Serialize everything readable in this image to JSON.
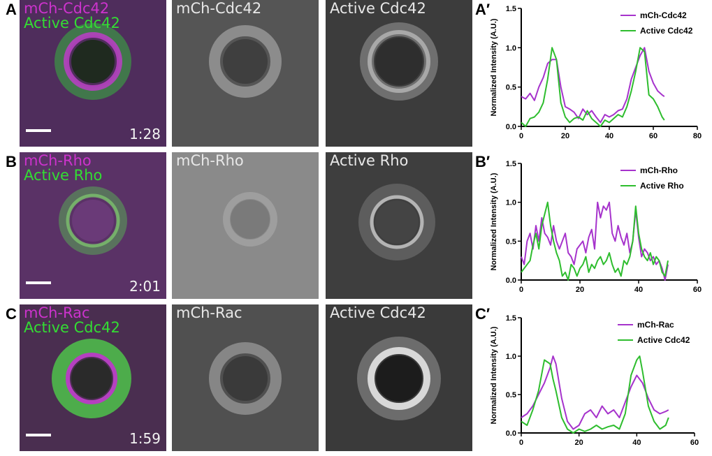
{
  "rows": [
    {
      "letter": "A",
      "merge_label_1": "mCh-Cdc42",
      "merge_label_2": "Active Cdc42",
      "time": "1:28",
      "single_label_1": "mCh-Cdc42",
      "single_label_2": "Active Cdc42",
      "chart_letter": "A′"
    },
    {
      "letter": "B",
      "merge_label_1": "mCh-Rho",
      "merge_label_2": "Active Rho",
      "time": "2:01",
      "single_label_1": "mCh-Rho",
      "single_label_2": "Active Rho",
      "chart_letter": "B′"
    },
    {
      "letter": "C",
      "merge_label_1": "mCh-Rac",
      "merge_label_2": "Active Cdc42",
      "time": "1:59",
      "single_label_1": "mCh-Rac",
      "single_label_2": "Active Cdc42",
      "chart_letter": "C′"
    }
  ],
  "colors": {
    "magenta": "#a633cc",
    "green": "#2ebd2e",
    "merge_bg": "#4a2a55"
  },
  "chart_data": [
    {
      "type": "line",
      "panel": "A′",
      "ylabel": "Normalized Intensity (A.U.)",
      "xlabel": "",
      "xlim": [
        0,
        80
      ],
      "ylim": [
        0,
        1.5
      ],
      "xticks": [
        0,
        20,
        40,
        60,
        80
      ],
      "yticks": [
        0.0,
        0.5,
        1.0,
        1.5
      ],
      "legend_position": "top-right",
      "series": [
        {
          "name": "mCh-Cdc42",
          "color": "#a633cc",
          "x": [
            0,
            2,
            4,
            6,
            8,
            10,
            12,
            14,
            16,
            18,
            20,
            22,
            24,
            26,
            28,
            30,
            32,
            34,
            36,
            38,
            40,
            42,
            44,
            46,
            48,
            50,
            52,
            54,
            56,
            58,
            60,
            62,
            64,
            65
          ],
          "y": [
            0.38,
            0.35,
            0.42,
            0.33,
            0.5,
            0.62,
            0.8,
            0.85,
            0.85,
            0.5,
            0.25,
            0.22,
            0.18,
            0.1,
            0.22,
            0.15,
            0.2,
            0.12,
            0.05,
            0.15,
            0.12,
            0.15,
            0.2,
            0.22,
            0.35,
            0.6,
            0.75,
            0.9,
            1.0,
            0.7,
            0.55,
            0.45,
            0.4,
            0.38
          ]
        },
        {
          "name": "Active Cdc42",
          "color": "#2ebd2e",
          "x": [
            0,
            2,
            4,
            6,
            8,
            10,
            12,
            14,
            16,
            18,
            20,
            22,
            24,
            26,
            28,
            30,
            32,
            34,
            36,
            38,
            40,
            42,
            44,
            46,
            48,
            50,
            52,
            54,
            56,
            58,
            60,
            62,
            64,
            65
          ],
          "y": [
            0.05,
            0.0,
            0.1,
            0.12,
            0.18,
            0.3,
            0.6,
            1.0,
            0.85,
            0.3,
            0.12,
            0.05,
            0.1,
            0.12,
            0.08,
            0.2,
            0.1,
            0.05,
            0.0,
            0.08,
            0.05,
            0.1,
            0.15,
            0.12,
            0.25,
            0.45,
            0.7,
            1.0,
            0.95,
            0.4,
            0.35,
            0.25,
            0.12,
            0.08
          ]
        }
      ]
    },
    {
      "type": "line",
      "panel": "B′",
      "ylabel": "Normalized Intensity (A.U.)",
      "xlabel": "",
      "xlim": [
        0,
        60
      ],
      "ylim": [
        0,
        1.5
      ],
      "xticks": [
        0,
        20,
        40,
        60
      ],
      "yticks": [
        0.0,
        0.5,
        1.0,
        1.5
      ],
      "legend_position": "top-right",
      "series": [
        {
          "name": "mCh-Rho",
          "color": "#a633cc",
          "x": [
            0,
            1,
            2,
            3,
            4,
            5,
            6,
            7,
            8,
            9,
            10,
            11,
            12,
            13,
            14,
            15,
            16,
            17,
            18,
            19,
            20,
            21,
            22,
            23,
            24,
            25,
            26,
            27,
            28,
            29,
            30,
            31,
            32,
            33,
            34,
            35,
            36,
            37,
            38,
            39,
            40,
            41,
            42,
            43,
            44,
            45,
            46,
            47,
            48,
            49,
            50
          ],
          "y": [
            0.3,
            0.2,
            0.5,
            0.6,
            0.4,
            0.7,
            0.5,
            0.8,
            0.6,
            0.55,
            0.45,
            0.7,
            0.5,
            0.4,
            0.5,
            0.6,
            0.35,
            0.3,
            0.2,
            0.4,
            0.45,
            0.5,
            0.35,
            0.55,
            0.65,
            0.4,
            1.0,
            0.8,
            0.95,
            0.9,
            1.0,
            0.6,
            0.5,
            0.7,
            0.55,
            0.45,
            0.6,
            0.35,
            0.5,
            0.9,
            0.55,
            0.3,
            0.4,
            0.35,
            0.25,
            0.3,
            0.2,
            0.25,
            0.15,
            0.0,
            0.2
          ]
        },
        {
          "name": "Active Rho",
          "color": "#2ebd2e",
          "x": [
            0,
            1,
            2,
            3,
            4,
            5,
            6,
            7,
            8,
            9,
            10,
            11,
            12,
            13,
            14,
            15,
            16,
            17,
            18,
            19,
            20,
            21,
            22,
            23,
            24,
            25,
            26,
            27,
            28,
            29,
            30,
            31,
            32,
            33,
            34,
            35,
            36,
            37,
            38,
            39,
            40,
            41,
            42,
            43,
            44,
            45,
            46,
            47,
            48,
            49,
            50
          ],
          "y": [
            0.1,
            0.15,
            0.2,
            0.25,
            0.45,
            0.6,
            0.4,
            0.7,
            0.85,
            1.0,
            0.7,
            0.5,
            0.35,
            0.25,
            0.05,
            0.1,
            0.0,
            0.2,
            0.15,
            0.05,
            0.15,
            0.2,
            0.3,
            0.1,
            0.2,
            0.15,
            0.25,
            0.3,
            0.2,
            0.25,
            0.35,
            0.2,
            0.1,
            0.15,
            0.05,
            0.25,
            0.2,
            0.3,
            0.5,
            0.95,
            0.6,
            0.4,
            0.3,
            0.25,
            0.35,
            0.2,
            0.3,
            0.25,
            0.1,
            0.05,
            0.25
          ]
        }
      ]
    },
    {
      "type": "line",
      "panel": "C′",
      "ylabel": "Normalized Intensity (A.U.)",
      "xlabel": "",
      "xlim": [
        0,
        60
      ],
      "ylim": [
        0,
        1.5
      ],
      "xticks": [
        0,
        20,
        40,
        60
      ],
      "yticks": [
        0.0,
        0.5,
        1.0,
        1.5
      ],
      "legend_position": "top-right",
      "series": [
        {
          "name": "mCh-Rac",
          "color": "#a633cc",
          "x": [
            0,
            2,
            4,
            6,
            8,
            10,
            11,
            12,
            14,
            16,
            18,
            20,
            22,
            24,
            26,
            28,
            30,
            32,
            34,
            36,
            38,
            40,
            42,
            44,
            46,
            48,
            50,
            51
          ],
          "y": [
            0.2,
            0.25,
            0.35,
            0.5,
            0.65,
            0.85,
            1.0,
            0.9,
            0.45,
            0.15,
            0.05,
            0.1,
            0.25,
            0.3,
            0.2,
            0.35,
            0.25,
            0.3,
            0.2,
            0.4,
            0.6,
            0.75,
            0.65,
            0.45,
            0.3,
            0.25,
            0.28,
            0.3
          ]
        },
        {
          "name": "Active Cdc42",
          "color": "#2ebd2e",
          "x": [
            0,
            2,
            4,
            6,
            8,
            10,
            11,
            12,
            14,
            16,
            18,
            20,
            22,
            24,
            26,
            28,
            30,
            32,
            34,
            36,
            38,
            40,
            41,
            42,
            44,
            46,
            48,
            50,
            51
          ],
          "y": [
            0.15,
            0.1,
            0.3,
            0.55,
            0.95,
            0.9,
            0.7,
            0.55,
            0.2,
            0.05,
            0.0,
            0.05,
            0.02,
            0.05,
            0.1,
            0.05,
            0.08,
            0.1,
            0.05,
            0.25,
            0.75,
            0.95,
            1.0,
            0.8,
            0.35,
            0.15,
            0.05,
            0.1,
            0.2
          ]
        }
      ]
    }
  ]
}
